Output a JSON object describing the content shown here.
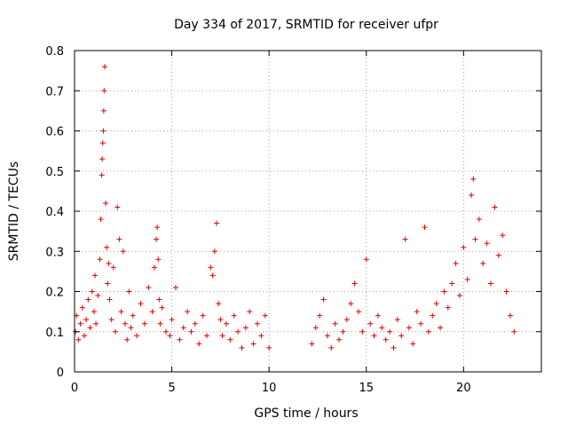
{
  "chart_data": {
    "type": "scatter",
    "title": "Day 334 of 2017, SRMTID for receiver ufpr",
    "xlabel": "GPS time / hours",
    "ylabel": "SRMTID / TECUs",
    "xlim": [
      0,
      24
    ],
    "ylim": [
      0,
      0.8
    ],
    "x_ticks": [
      0,
      5,
      10,
      15,
      20
    ],
    "x_tick_labels": [
      "0",
      "5",
      "10",
      "15",
      "20"
    ],
    "y_ticks": [
      0,
      0.1,
      0.2,
      0.3,
      0.4,
      0.5,
      0.6,
      0.7,
      0.8
    ],
    "y_tick_labels": [
      "0",
      "0.1",
      "0.2",
      "0.3",
      "0.4",
      "0.5",
      "0.6",
      "0.7",
      "0.8"
    ],
    "grid": true,
    "marker": "+",
    "color": "#e00000",
    "series": [
      {
        "name": "SRMTID",
        "x": [
          0.05,
          0.1,
          0.2,
          0.3,
          0.4,
          0.5,
          0.6,
          0.7,
          0.8,
          0.9,
          1.0,
          1.05,
          1.1,
          1.2,
          1.3,
          1.35,
          1.4,
          1.42,
          1.45,
          1.48,
          1.5,
          1.52,
          1.55,
          1.6,
          1.65,
          1.7,
          1.75,
          1.8,
          1.9,
          2.0,
          2.1,
          2.2,
          2.3,
          2.4,
          2.5,
          2.6,
          2.7,
          2.8,
          2.9,
          3.0,
          3.2,
          3.4,
          3.6,
          3.8,
          4.0,
          4.1,
          4.2,
          4.25,
          4.3,
          4.35,
          4.4,
          4.5,
          4.7,
          4.9,
          5.0,
          5.2,
          5.4,
          5.6,
          5.8,
          6.0,
          6.2,
          6.4,
          6.6,
          6.8,
          7.0,
          7.1,
          7.2,
          7.3,
          7.4,
          7.5,
          7.6,
          7.8,
          8.0,
          8.2,
          8.4,
          8.6,
          8.8,
          9.0,
          9.2,
          9.4,
          9.6,
          9.8,
          10.0,
          12.2,
          12.4,
          12.6,
          12.8,
          13.0,
          13.2,
          13.4,
          13.6,
          13.8,
          14.0,
          14.2,
          14.4,
          14.6,
          14.8,
          15.0,
          15.2,
          15.4,
          15.6,
          15.8,
          16.0,
          16.2,
          16.4,
          16.6,
          16.8,
          17.0,
          17.2,
          17.4,
          17.6,
          17.8,
          18.0,
          18.2,
          18.4,
          18.6,
          18.8,
          19.0,
          19.2,
          19.4,
          19.6,
          19.8,
          20.0,
          20.2,
          20.4,
          20.5,
          20.6,
          20.8,
          21.0,
          21.2,
          21.4,
          21.6,
          21.8,
          22.0,
          22.2,
          22.4,
          22.6
        ],
        "y": [
          0.1,
          0.14,
          0.08,
          0.12,
          0.16,
          0.09,
          0.13,
          0.18,
          0.11,
          0.2,
          0.15,
          0.24,
          0.12,
          0.19,
          0.28,
          0.38,
          0.49,
          0.53,
          0.57,
          0.6,
          0.65,
          0.7,
          0.76,
          0.42,
          0.31,
          0.22,
          0.27,
          0.18,
          0.13,
          0.26,
          0.1,
          0.41,
          0.33,
          0.15,
          0.3,
          0.12,
          0.08,
          0.2,
          0.11,
          0.14,
          0.09,
          0.17,
          0.12,
          0.21,
          0.15,
          0.26,
          0.33,
          0.36,
          0.28,
          0.18,
          0.12,
          0.16,
          0.1,
          0.09,
          0.13,
          0.21,
          0.08,
          0.11,
          0.15,
          0.1,
          0.12,
          0.07,
          0.14,
          0.09,
          0.26,
          0.24,
          0.3,
          0.37,
          0.17,
          0.13,
          0.09,
          0.12,
          0.08,
          0.14,
          0.1,
          0.06,
          0.11,
          0.15,
          0.07,
          0.12,
          0.09,
          0.14,
          0.06,
          0.07,
          0.11,
          0.14,
          0.18,
          0.09,
          0.06,
          0.12,
          0.08,
          0.1,
          0.13,
          0.17,
          0.22,
          0.15,
          0.1,
          0.28,
          0.12,
          0.09,
          0.14,
          0.11,
          0.08,
          0.1,
          0.06,
          0.13,
          0.09,
          0.33,
          0.11,
          0.07,
          0.15,
          0.12,
          0.36,
          0.1,
          0.14,
          0.17,
          0.11,
          0.2,
          0.16,
          0.22,
          0.27,
          0.19,
          0.31,
          0.23,
          0.44,
          0.48,
          0.33,
          0.38,
          0.27,
          0.32,
          0.22,
          0.41,
          0.29,
          0.34,
          0.2,
          0.14,
          0.1
        ]
      }
    ]
  }
}
